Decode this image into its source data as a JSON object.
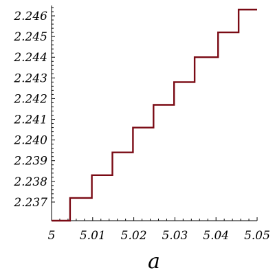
{
  "chart_data": {
    "type": "line",
    "title": "",
    "xlabel": "a",
    "ylabel": "",
    "xlim": [
      5.0,
      5.05
    ],
    "ylim": [
      2.2361,
      2.2465
    ],
    "grid": false,
    "legend": "none",
    "x_ticks": [
      5.0,
      5.01,
      5.02,
      5.03,
      5.04,
      5.05
    ],
    "x_tick_labels": [
      "5",
      "5.01",
      "5.02",
      "5.03",
      "5.04",
      "5.05"
    ],
    "y_ticks": [
      2.237,
      2.238,
      2.239,
      2.24,
      2.241,
      2.242,
      2.243,
      2.244,
      2.245,
      2.246
    ],
    "y_tick_labels": [
      "2.237",
      "2.238",
      "2.239",
      "2.240",
      "2.241",
      "2.242",
      "2.243",
      "2.244",
      "2.245",
      "2.246"
    ],
    "series": [
      {
        "color": "#7a0a14",
        "x": [
          5.0,
          5.0045,
          5.0045,
          5.0098,
          5.0098,
          5.0148,
          5.0148,
          5.0198,
          5.0198,
          5.0248,
          5.0248,
          5.0298,
          5.0298,
          5.0348,
          5.0348,
          5.0405,
          5.0405,
          5.0455,
          5.0455,
          5.05
        ],
        "y": [
          2.2361,
          2.2361,
          2.2372,
          2.2372,
          2.2383,
          2.2383,
          2.2394,
          2.2394,
          2.2406,
          2.2406,
          2.2417,
          2.2417,
          2.2428,
          2.2428,
          2.244,
          2.244,
          2.2452,
          2.2452,
          2.2463,
          2.2463
        ]
      }
    ]
  }
}
